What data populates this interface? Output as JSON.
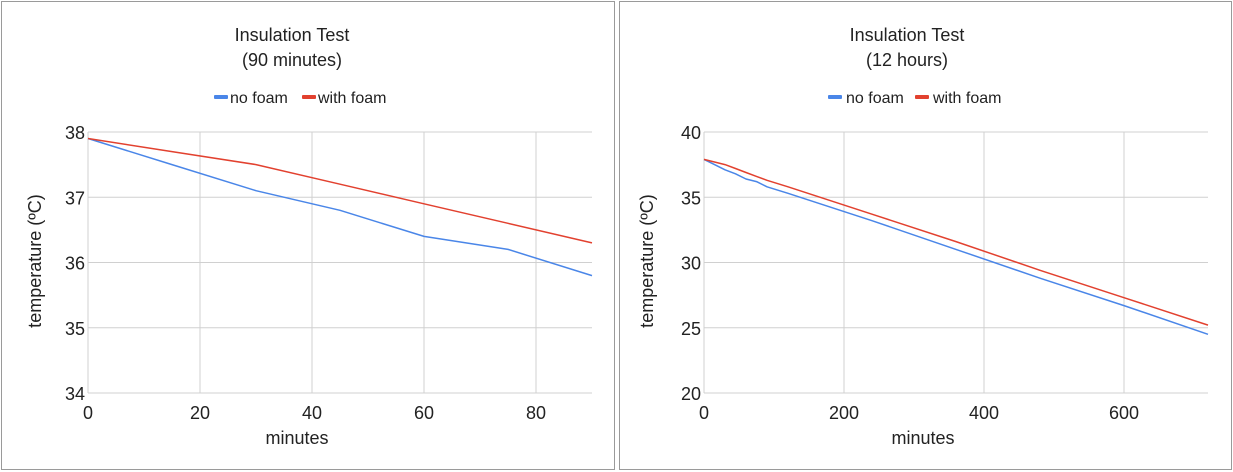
{
  "colors": {
    "no_foam": "#4a86e8",
    "with_foam": "#e2412f",
    "grid": "#d0d0d0"
  },
  "chart_data": [
    {
      "type": "line",
      "title": [
        "Insulation Test",
        "(90 minutes)"
      ],
      "legend": [
        "no foam",
        "with foam"
      ],
      "xlabel": "minutes",
      "ylabel": "temperature (ºC)",
      "xlim": [
        0,
        90
      ],
      "ylim": [
        34,
        38
      ],
      "xticks": [
        0,
        20,
        40,
        60,
        80
      ],
      "yticks": [
        34,
        35,
        36,
        37,
        38
      ],
      "xtick_labels": [
        "0",
        "20",
        "40",
        "60",
        "80"
      ],
      "ytick_labels": [
        "34",
        "35",
        "36",
        "37",
        "38"
      ],
      "series": [
        {
          "name": "no foam",
          "x": [
            0,
            15,
            30,
            45,
            60,
            75,
            90
          ],
          "values": [
            37.9,
            37.5,
            37.1,
            36.8,
            36.4,
            36.2,
            35.8
          ]
        },
        {
          "name": "with foam",
          "x": [
            0,
            15,
            30,
            45,
            60,
            75,
            90
          ],
          "values": [
            37.9,
            37.7,
            37.5,
            37.2,
            36.9,
            36.6,
            36.3
          ]
        }
      ]
    },
    {
      "type": "line",
      "title": [
        "Insulation Test",
        "(12 hours)"
      ],
      "legend": [
        "no foam",
        "with foam"
      ],
      "xlabel": "minutes",
      "ylabel": "temperature (ºC)",
      "xlim": [
        0,
        720
      ],
      "ylim": [
        20,
        40
      ],
      "xticks": [
        0,
        200,
        400,
        600
      ],
      "yticks": [
        20,
        25,
        30,
        35,
        40
      ],
      "xtick_labels": [
        "0",
        "200",
        "400",
        "600"
      ],
      "ytick_labels": [
        "20",
        "25",
        "30",
        "35",
        "40"
      ],
      "series": [
        {
          "name": "no foam",
          "x": [
            0,
            15,
            30,
            45,
            60,
            75,
            90,
            120,
            240,
            360,
            480,
            600,
            720
          ],
          "values": [
            37.9,
            37.5,
            37.1,
            36.8,
            36.4,
            36.2,
            35.8,
            35.3,
            33.2,
            31.0,
            28.8,
            26.7,
            24.5
          ]
        },
        {
          "name": "with foam",
          "x": [
            0,
            15,
            30,
            45,
            60,
            75,
            90,
            120,
            240,
            360,
            480,
            600,
            720
          ],
          "values": [
            37.9,
            37.7,
            37.5,
            37.2,
            36.9,
            36.6,
            36.3,
            35.8,
            33.7,
            31.6,
            29.4,
            27.3,
            25.2
          ]
        }
      ]
    }
  ]
}
